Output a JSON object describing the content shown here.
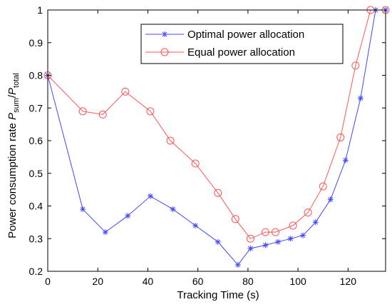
{
  "chart_data": {
    "type": "line",
    "title": "",
    "xlabel": "Tracking Time (s)",
    "ylabel": {
      "main": "Power consumption rate ",
      "p1": "P",
      "sub1": "sum",
      "slash": "/",
      "p2": "P",
      "sub2": "total"
    },
    "xlim": [
      0,
      135
    ],
    "ylim": [
      0.2,
      1.0
    ],
    "xticks": [
      0,
      20,
      40,
      60,
      80,
      100,
      120
    ],
    "yticks": [
      0.2,
      0.3,
      0.4,
      0.5,
      0.6,
      0.7,
      0.8,
      0.9,
      1.0
    ],
    "xtick_labels": [
      "0",
      "20",
      "40",
      "60",
      "80",
      "100",
      "120"
    ],
    "ytick_labels": [
      "0.2",
      "0.3",
      "0.4",
      "0.5",
      "0.6",
      "0.7",
      "0.8",
      "0.9",
      "1"
    ],
    "grid": false,
    "legend_position": "top-right",
    "series": [
      {
        "name": "Optimal power allocation",
        "color": "#4444ff",
        "marker": "star",
        "x": [
          0,
          14,
          23,
          32,
          41,
          50,
          59,
          68,
          76,
          81,
          87,
          92,
          97,
          102,
          107,
          113,
          119,
          125,
          131,
          135
        ],
        "y": [
          0.8,
          0.39,
          0.32,
          0.37,
          0.43,
          0.39,
          0.34,
          0.29,
          0.22,
          0.27,
          0.28,
          0.29,
          0.3,
          0.31,
          0.35,
          0.42,
          0.54,
          0.73,
          1.0,
          1.0
        ]
      },
      {
        "name": "Equal power allocation",
        "color": "#ff5555",
        "marker": "circle",
        "x": [
          0,
          14,
          22,
          31,
          41,
          49,
          59,
          68,
          75,
          81,
          87,
          91,
          98,
          104,
          110,
          117,
          123,
          129,
          135
        ],
        "y": [
          0.8,
          0.69,
          0.68,
          0.75,
          0.69,
          0.6,
          0.53,
          0.44,
          0.36,
          0.3,
          0.32,
          0.32,
          0.34,
          0.38,
          0.46,
          0.61,
          0.83,
          1.0,
          1.0
        ]
      }
    ]
  }
}
